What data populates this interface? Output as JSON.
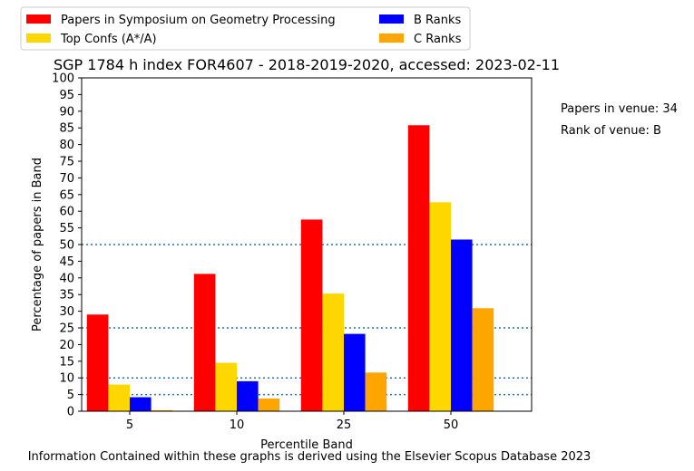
{
  "chart_data": {
    "type": "bar",
    "title": "SGP 1784 h index FOR4607 - 2018-2019-2020, accessed: 2023-02-11",
    "xlabel": "Percentile Band",
    "ylabel": "Percentage of papers in Band",
    "categories": [
      "5",
      "10",
      "25",
      "50"
    ],
    "ylim": [
      0,
      100
    ],
    "yticks": [
      0,
      5,
      10,
      15,
      20,
      25,
      30,
      35,
      40,
      45,
      50,
      55,
      60,
      65,
      70,
      75,
      80,
      85,
      90,
      95,
      100
    ],
    "series": [
      {
        "name": "Papers in Symposium on Geometry Processing",
        "color": "#ff0000",
        "values": [
          29.0,
          41.2,
          57.5,
          85.8
        ]
      },
      {
        "name": "Top Confs (A*/A)",
        "color": "#ffd700",
        "values": [
          8.0,
          14.5,
          35.3,
          62.7
        ]
      },
      {
        "name": "B Ranks",
        "color": "#0000ff",
        "values": [
          4.2,
          9.0,
          23.2,
          51.5
        ]
      },
      {
        "name": "C Ranks",
        "color": "#ffa500",
        "values": [
          0.3,
          3.8,
          11.6,
          30.9
        ]
      }
    ],
    "reference_lines": [
      5,
      10,
      25,
      50
    ],
    "reference_line_color": "#1f77b4",
    "legend_placement": "top-left, above the plot, two columns",
    "annotations": [
      "Papers in venue: 34",
      "Rank of venue: B"
    ],
    "footer": "Information Contained within these graphs is derived using the Elsevier Scopus Database 2023"
  }
}
